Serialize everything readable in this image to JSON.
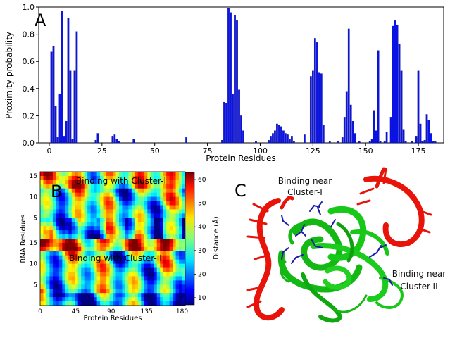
{
  "chart_data": [
    {
      "panel": "A",
      "type": "bar",
      "xlabel": "Protein Residues",
      "ylabel": "Proximity probability",
      "xlim": [
        -5,
        187
      ],
      "ylim": [
        0,
        1.0
      ],
      "xticks": [
        "0",
        "25",
        "50",
        "75",
        "100",
        "125",
        "150",
        "175"
      ],
      "yticks": [
        "0.0",
        "0.2",
        "0.4",
        "0.6",
        "0.8",
        "1.0"
      ],
      "bar_color": "#0a14e6",
      "x": [
        1,
        2,
        3,
        4,
        5,
        6,
        7,
        8,
        9,
        10,
        11,
        12,
        13,
        22,
        23,
        30,
        31,
        32,
        33,
        40,
        65,
        82,
        83,
        84,
        85,
        86,
        87,
        88,
        89,
        90,
        91,
        92,
        98,
        104,
        105,
        106,
        107,
        108,
        109,
        110,
        111,
        112,
        113,
        114,
        115,
        116,
        121,
        124,
        125,
        126,
        127,
        128,
        129,
        130,
        133,
        137,
        139,
        140,
        141,
        142,
        143,
        144,
        145,
        147,
        152,
        153,
        154,
        155,
        156,
        157,
        159,
        160,
        162,
        163,
        164,
        165,
        166,
        167,
        168,
        169,
        172,
        174,
        175,
        176,
        177,
        178,
        179,
        180,
        181,
        182,
        183
      ],
      "values": [
        0.67,
        0.71,
        0.27,
        0.04,
        0.36,
        0.97,
        0.05,
        0.16,
        0.92,
        0.53,
        0.03,
        0.53,
        0.82,
        0.02,
        0.07,
        0.05,
        0.06,
        0.03,
        0.01,
        0.03,
        0.04,
        0.02,
        0.3,
        0.29,
        0.99,
        0.96,
        0.36,
        0.94,
        0.9,
        0.39,
        0.2,
        0.09,
        0.01,
        0.02,
        0.05,
        0.07,
        0.09,
        0.14,
        0.13,
        0.12,
        0.09,
        0.07,
        0.06,
        0.03,
        0.05,
        0.01,
        0.06,
        0.49,
        0.53,
        0.77,
        0.74,
        0.52,
        0.51,
        0.13,
        0.01,
        0.01,
        0.04,
        0.19,
        0.38,
        0.84,
        0.28,
        0.16,
        0.07,
        0.01,
        0.01,
        0.03,
        0.24,
        0.09,
        0.68,
        0.01,
        0.01,
        0.08,
        0.19,
        0.86,
        0.9,
        0.87,
        0.73,
        0.53,
        0.1,
        0.01,
        0.01,
        0.05,
        0.53,
        0.14,
        0.01,
        0.02,
        0.21,
        0.17,
        0.07,
        0.01,
        0.01
      ]
    },
    {
      "panel": "B",
      "type": "heatmap",
      "xlabel": "Protein Residues",
      "ylabel": "RNA Residues",
      "colorbar_label": "Distance (Å)",
      "colorbar_ticks": [
        "10",
        "20",
        "30",
        "40",
        "50",
        "60"
      ],
      "colorbar_range": [
        7,
        63
      ],
      "xticks": [
        "0",
        "45",
        "90",
        "135",
        "180"
      ],
      "yticks_upper": [
        "5",
        "10",
        "15"
      ],
      "yticks_lower": [
        "5",
        "10",
        "15"
      ],
      "colormap": "jet",
      "annotations": [
        "Binding with Cluster-I",
        "Binding with Cluster-II"
      ]
    }
  ],
  "panels": {
    "a_letter": "A",
    "b_letter": "B",
    "c_letter": "C"
  },
  "panel_c": {
    "label_cluster1": [
      "Binding near",
      "Cluster-I"
    ],
    "label_cluster2": [
      "Binding near",
      "Cluster-II"
    ],
    "protein_color": "#18c818",
    "rna_color": "#e8140a",
    "sidechain_color": "#1a1aa8"
  }
}
